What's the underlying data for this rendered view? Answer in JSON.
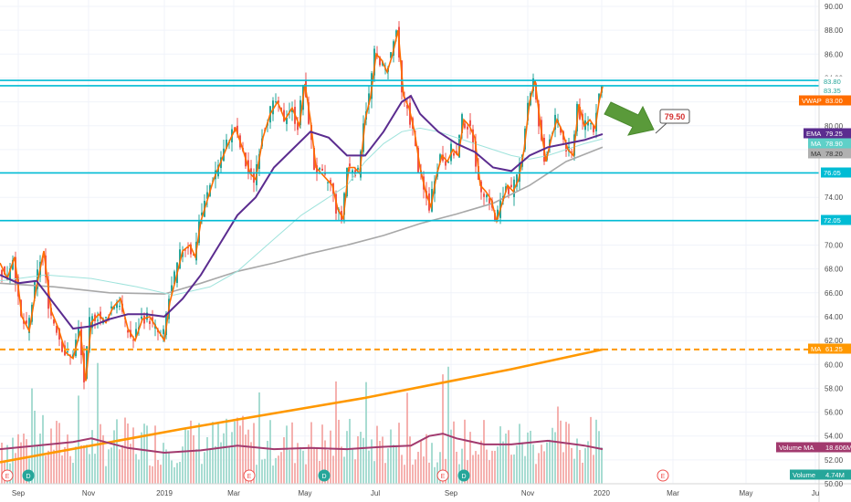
{
  "chart_data": {
    "type": "candlestick",
    "title": "",
    "xlabel": "",
    "ylabel": "",
    "ylim": [
      50,
      91
    ],
    "grid": true,
    "x_ticks": [
      "Sep",
      "Nov",
      "2019",
      "Mar",
      "May",
      "Jul",
      "Sep",
      "Nov",
      "2020",
      "Mar",
      "May",
      "Ju"
    ],
    "y_ticks": [
      "90.00",
      "88.00",
      "86.00",
      "84.00",
      "82.00",
      "80.00",
      "78.00",
      "76.00",
      "74.00",
      "72.00",
      "70.00",
      "68.00",
      "66.00",
      "64.00",
      "62.00",
      "60.00",
      "58.00",
      "56.00",
      "54.00",
      "52.00",
      "50.00"
    ],
    "horizontal_lines": [
      83.8,
      83.35,
      76.05,
      72.05
    ],
    "dashed_line": 61.25,
    "price_tags": [
      {
        "label": "",
        "value": "83.80",
        "color": "#ffffff",
        "text_color": "#26a69a"
      },
      {
        "label": "",
        "value": "83.35",
        "color": "#ffffff",
        "text_color": "#26a69a"
      },
      {
        "label": "VWAP",
        "value": "83.00",
        "color": "#ff6d00",
        "text_color": "#ffffff"
      },
      {
        "label": "EMA",
        "value": "79.25",
        "color": "#5b2c8f",
        "text_color": "#ffffff"
      },
      {
        "label": "MA",
        "value": "78.90",
        "color": "#5fd0c8",
        "text_color": "#ffffff"
      },
      {
        "label": "MA",
        "value": "78.20",
        "color": "#b0b0b0",
        "text_color": "#333333"
      },
      {
        "label": "",
        "value": "76.05",
        "color": "#00bcd4",
        "text_color": "#ffffff"
      },
      {
        "label": "",
        "value": "72.05",
        "color": "#00bcd4",
        "text_color": "#ffffff"
      },
      {
        "label": "MA",
        "value": "61.25",
        "color": "#ff9800",
        "text_color": "#ffffff"
      },
      {
        "label": "Volume MA",
        "value": "18.606M",
        "color": "#a23a6e",
        "text_color": "#ffffff"
      },
      {
        "label": "Volume",
        "value": "4.74M",
        "color": "#26a69a",
        "text_color": "#ffffff"
      }
    ],
    "callout": {
      "value": "79.50"
    },
    "events": [
      "E",
      "D",
      "E",
      "D",
      "E",
      "D",
      "E"
    ],
    "price_path": [
      [
        0,
        68.5
      ],
      [
        8,
        67.2
      ],
      [
        16,
        69.0
      ],
      [
        24,
        64.0
      ],
      [
        32,
        62.8
      ],
      [
        40,
        66.5
      ],
      [
        48,
        69.5
      ],
      [
        56,
        64.5
      ],
      [
        64,
        63.0
      ],
      [
        72,
        61.0
      ],
      [
        80,
        60.5
      ],
      [
        88,
        62.8
      ],
      [
        94,
        58.6
      ],
      [
        100,
        63.5
      ],
      [
        108,
        64.2
      ],
      [
        116,
        63.5
      ],
      [
        124,
        64.8
      ],
      [
        132,
        65.5
      ],
      [
        140,
        63.0
      ],
      [
        148,
        62.0
      ],
      [
        156,
        63.8
      ],
      [
        164,
        64.0
      ],
      [
        172,
        63.0
      ],
      [
        180,
        62.0
      ],
      [
        186,
        65.2
      ],
      [
        192,
        67.0
      ],
      [
        200,
        69.5
      ],
      [
        208,
        70.0
      ],
      [
        214,
        69.0
      ],
      [
        220,
        72.0
      ],
      [
        226,
        73.5
      ],
      [
        234,
        75.5
      ],
      [
        242,
        77.0
      ],
      [
        250,
        78.5
      ],
      [
        258,
        79.8
      ],
      [
        266,
        78.0
      ],
      [
        274,
        76.0
      ],
      [
        280,
        75.5
      ],
      [
        288,
        79.0
      ],
      [
        296,
        81.0
      ],
      [
        304,
        82.0
      ],
      [
        312,
        80.5
      ],
      [
        320,
        81.5
      ],
      [
        328,
        80.0
      ],
      [
        334,
        83.5
      ],
      [
        340,
        80.5
      ],
      [
        346,
        76.5
      ],
      [
        352,
        76.0
      ],
      [
        358,
        75.5
      ],
      [
        364,
        75.0
      ],
      [
        370,
        73.0
      ],
      [
        376,
        72.2
      ],
      [
        382,
        76.5
      ],
      [
        388,
        76.5
      ],
      [
        394,
        76.0
      ],
      [
        400,
        80.5
      ],
      [
        406,
        82.5
      ],
      [
        412,
        86.0
      ],
      [
        418,
        85.5
      ],
      [
        424,
        84.5
      ],
      [
        430,
        86.0
      ],
      [
        436,
        88.0
      ],
      [
        442,
        82.5
      ],
      [
        448,
        81.5
      ],
      [
        454,
        79.5
      ],
      [
        460,
        76.5
      ],
      [
        466,
        74.5
      ],
      [
        472,
        73.2
      ],
      [
        478,
        75.8
      ],
      [
        484,
        77.5
      ],
      [
        490,
        77.0
      ],
      [
        496,
        78.0
      ],
      [
        502,
        77.5
      ],
      [
        508,
        80.5
      ],
      [
        514,
        80.0
      ],
      [
        520,
        79.0
      ],
      [
        526,
        75.0
      ],
      [
        532,
        74.5
      ],
      [
        538,
        73.8
      ],
      [
        544,
        72.0
      ],
      [
        550,
        73.5
      ],
      [
        556,
        75.0
      ],
      [
        562,
        74.5
      ],
      [
        568,
        75.5
      ],
      [
        574,
        78.0
      ],
      [
        580,
        82.0
      ],
      [
        586,
        83.8
      ],
      [
        592,
        80.0
      ],
      [
        598,
        77.0
      ],
      [
        604,
        79.0
      ],
      [
        610,
        80.5
      ],
      [
        616,
        79.5
      ],
      [
        622,
        78.0
      ],
      [
        628,
        77.5
      ],
      [
        634,
        81.8
      ],
      [
        640,
        80.0
      ],
      [
        646,
        80.5
      ],
      [
        652,
        79.8
      ],
      [
        656,
        82.0
      ],
      [
        660,
        83.3
      ]
    ],
    "ema_path": [
      [
        0,
        67.5
      ],
      [
        20,
        66.8
      ],
      [
        40,
        67.0
      ],
      [
        60,
        65.0
      ],
      [
        80,
        63.0
      ],
      [
        100,
        63.2
      ],
      [
        120,
        63.8
      ],
      [
        140,
        64.2
      ],
      [
        160,
        64.2
      ],
      [
        180,
        64.0
      ],
      [
        200,
        65.5
      ],
      [
        220,
        67.5
      ],
      [
        240,
        70.0
      ],
      [
        260,
        72.5
      ],
      [
        280,
        74.0
      ],
      [
        300,
        76.5
      ],
      [
        320,
        78.0
      ],
      [
        340,
        79.5
      ],
      [
        360,
        79.0
      ],
      [
        380,
        77.5
      ],
      [
        400,
        77.5
      ],
      [
        420,
        79.5
      ],
      [
        440,
        82.0
      ],
      [
        450,
        82.5
      ],
      [
        460,
        81.0
      ],
      [
        480,
        79.5
      ],
      [
        500,
        78.5
      ],
      [
        520,
        77.8
      ],
      [
        540,
        76.5
      ],
      [
        560,
        76.2
      ],
      [
        580,
        77.5
      ],
      [
        600,
        78.2
      ],
      [
        620,
        78.5
      ],
      [
        640,
        78.8
      ],
      [
        660,
        79.3
      ]
    ],
    "ma_teal_path": [
      [
        0,
        67.0
      ],
      [
        50,
        67.5
      ],
      [
        100,
        67.2
      ],
      [
        150,
        66.5
      ],
      [
        190,
        65.8
      ],
      [
        230,
        66.5
      ],
      [
        260,
        67.8
      ],
      [
        300,
        70.5
      ],
      [
        330,
        72.5
      ],
      [
        360,
        74.0
      ],
      [
        380,
        75.0
      ],
      [
        400,
        77.0
      ],
      [
        420,
        78.5
      ],
      [
        440,
        79.5
      ],
      [
        460,
        79.8
      ],
      [
        480,
        79.5
      ],
      [
        500,
        79.0
      ],
      [
        520,
        78.5
      ],
      [
        540,
        78.0
      ],
      [
        560,
        77.5
      ],
      [
        580,
        77.2
      ],
      [
        600,
        77.5
      ],
      [
        620,
        78.0
      ],
      [
        640,
        78.5
      ],
      [
        660,
        78.9
      ]
    ],
    "ma_gray_path": [
      [
        0,
        66.8
      ],
      [
        60,
        66.5
      ],
      [
        120,
        66.0
      ],
      [
        180,
        65.9
      ],
      [
        220,
        66.8
      ],
      [
        260,
        67.8
      ],
      [
        300,
        68.5
      ],
      [
        340,
        69.3
      ],
      [
        380,
        70.0
      ],
      [
        420,
        70.8
      ],
      [
        460,
        71.8
      ],
      [
        500,
        72.6
      ],
      [
        540,
        73.5
      ],
      [
        580,
        75.0
      ],
      [
        620,
        77.0
      ],
      [
        660,
        78.2
      ]
    ],
    "long_ma_path": [
      [
        0,
        51.8
      ],
      [
        200,
        54.6
      ],
      [
        400,
        57.2
      ],
      [
        560,
        59.6
      ],
      [
        660,
        61.25
      ]
    ],
    "volume_ma_path": [
      [
        0,
        52.9
      ],
      [
        40,
        53.2
      ],
      [
        80,
        53.5
      ],
      [
        100,
        53.8
      ],
      [
        140,
        53.0
      ],
      [
        180,
        52.6
      ],
      [
        220,
        52.8
      ],
      [
        260,
        53.2
      ],
      [
        300,
        52.9
      ],
      [
        340,
        53.0
      ],
      [
        380,
        52.9
      ],
      [
        420,
        53.1
      ],
      [
        450,
        53.2
      ],
      [
        470,
        54.0
      ],
      [
        485,
        54.2
      ],
      [
        500,
        53.8
      ],
      [
        530,
        53.3
      ],
      [
        560,
        53.3
      ],
      [
        600,
        53.6
      ],
      [
        640,
        53.2
      ],
      [
        660,
        52.9
      ]
    ]
  }
}
